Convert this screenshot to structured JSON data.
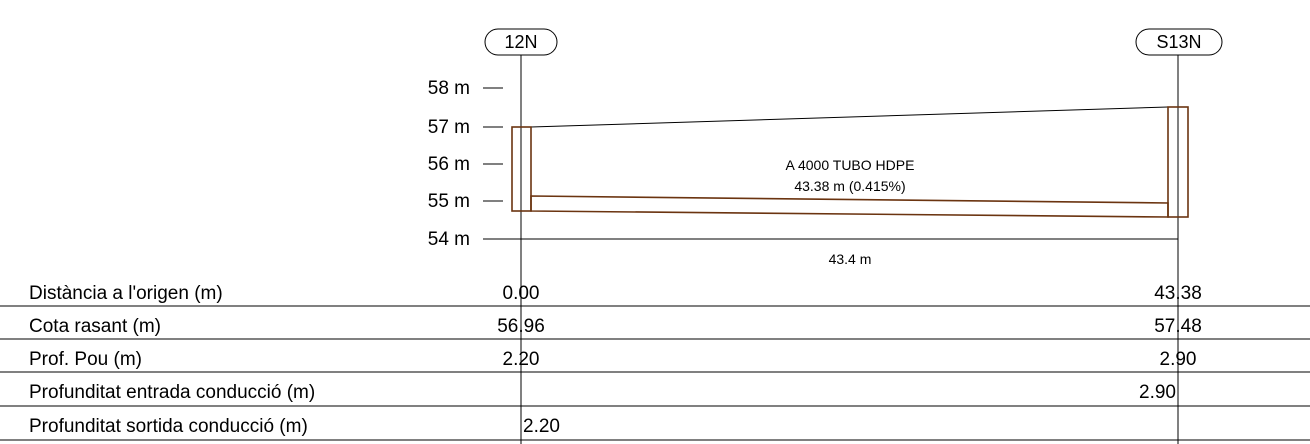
{
  "nodes": [
    {
      "id": "12N"
    },
    {
      "id": "S13N"
    }
  ],
  "axis": {
    "ticks": [
      "58 m",
      "57 m",
      "56 m",
      "55 m",
      "54 m"
    ]
  },
  "pipe": {
    "name": "A 4000 TUBO HDPE",
    "length_slope": "43.38 m (0.415%)",
    "span_label": "43.4 m"
  },
  "table": {
    "rows": [
      {
        "label": "Distància a l'origen (m)",
        "values": [
          "0.00",
          "43.38"
        ]
      },
      {
        "label": "Cota rasant (m)",
        "values": [
          "56.96",
          "57.48"
        ]
      },
      {
        "label": "Prof. Pou (m)",
        "values": [
          "2.20",
          "2.90"
        ]
      },
      {
        "label": "Profunditat entrada conducció (m)",
        "values": [
          "",
          "2.90"
        ]
      },
      {
        "label": "Profunditat sortida conducció (m)",
        "values": [
          "2.20",
          ""
        ]
      }
    ]
  },
  "colors": {
    "pipe": "#6b3410",
    "line": "#000000"
  }
}
